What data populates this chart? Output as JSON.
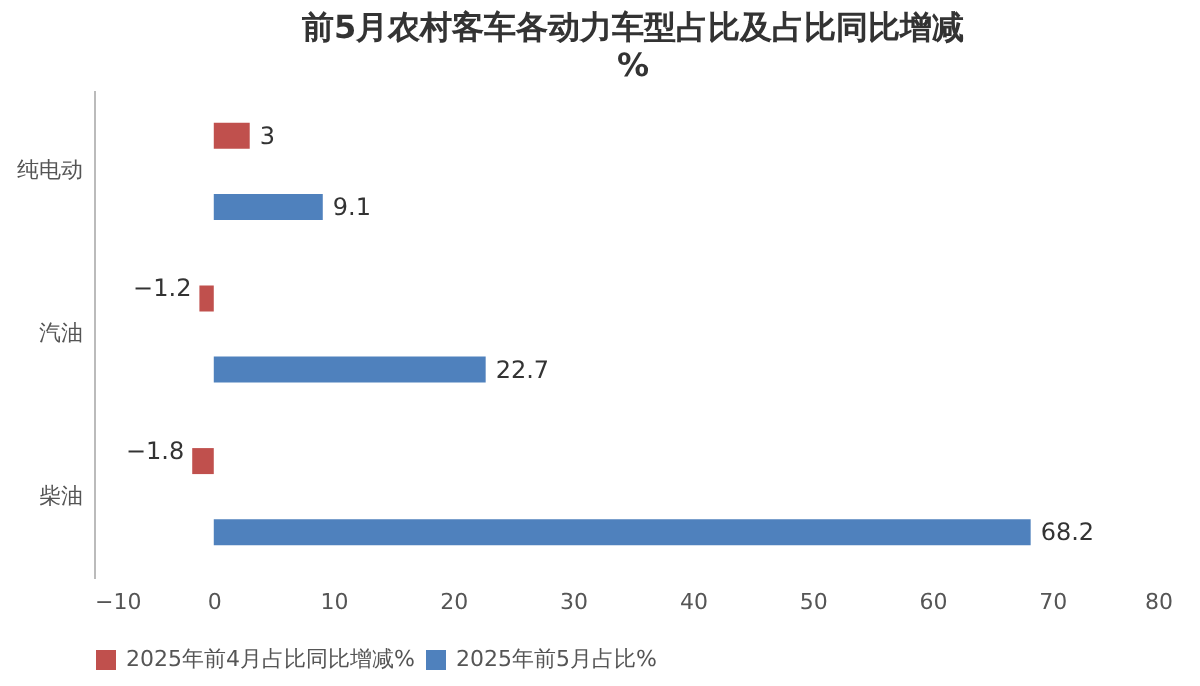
{
  "chart_data": {
    "type": "bar",
    "orientation": "horizontal",
    "title": "前5月农村客车各动力车型占比及占比同比增减",
    "subtitle": "%",
    "categories": [
      "纯电动",
      "汽油",
      "柴油"
    ],
    "series": [
      {
        "name": "2025年前4月占比同比增减%",
        "color": "#c0504d",
        "values": [
          3,
          -1.2,
          -1.8
        ]
      },
      {
        "name": "2025年前5月占比%",
        "color": "#4f81bd",
        "values": [
          9.1,
          22.7,
          68.2
        ]
      }
    ],
    "xlim": [
      -10,
      80
    ],
    "xticks": [
      -10,
      0,
      10,
      20,
      30,
      40,
      50,
      60,
      70,
      80
    ],
    "data_labels": true,
    "legend": "bottom",
    "grid": false
  }
}
